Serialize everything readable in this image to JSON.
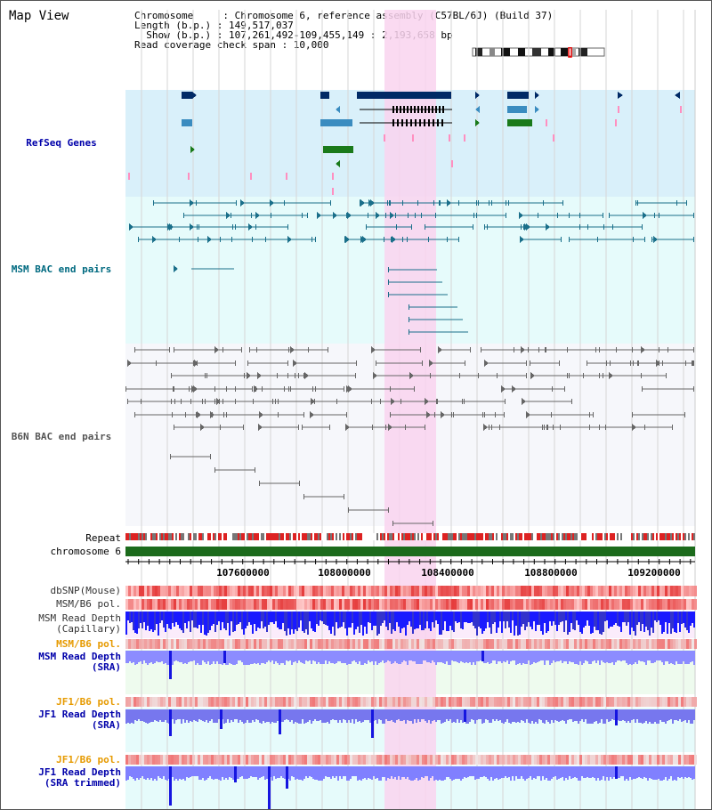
{
  "title": "Map View",
  "info": {
    "chromosome": "Chromosome     : Chromosome 6, reference assembly (C57BL/6J) (Build 37)",
    "length": "Length (b.p.) : 149,517,037",
    "show": "  Show (b.p.) : 107,261,492-109,455,149 : 2,193,658 bp",
    "coverage": "Read coverage check span : 10,000"
  },
  "tracks": {
    "refseq": {
      "label": "RefSeq Genes",
      "color": "#0000aa"
    },
    "msm_bac": {
      "label": "MSM BAC end pairs",
      "color": "#006a80"
    },
    "b6n_bac": {
      "label": "B6N BAC end pairs",
      "color": "#555555"
    },
    "repeat": {
      "label": "Repeat"
    },
    "chromosome": {
      "label": "chromosome 6"
    },
    "dbsnp": {
      "label": "dbSNP(Mouse)"
    },
    "msm_b6_pol_a": {
      "label": "MSM/B6 pol."
    },
    "msm_depth_cap": {
      "label": "MSM Read Depth\n(Capillary)",
      "color": "#333333"
    },
    "msm_b6_pol_b": {
      "label": "MSM/B6 pol.",
      "color": "#e69a00"
    },
    "msm_depth_sra": {
      "label": "MSM Read Depth\n(SRA)",
      "color": "#0000aa"
    },
    "jf1_b6_pol_a": {
      "label": "JF1/B6 pol.",
      "color": "#e69a00"
    },
    "jf1_depth_sra": {
      "label": "JF1 Read Depth\n(SRA)",
      "color": "#0000aa"
    },
    "jf1_b6_pol_b": {
      "label": "JF1/B6 pol.",
      "color": "#e69a00"
    },
    "jf1_depth_trim": {
      "label": "JF1 Read Depth\n(SRA trimmed)",
      "color": "#0000aa"
    }
  },
  "axis": {
    "ticks": [
      "107600000",
      "108000000",
      "108400000",
      "108800000",
      "109200000"
    ]
  },
  "colors": {
    "highlight": "#f9d4ee",
    "refseq_bg": "#d9f0fa",
    "msm_bg": "#e6fbfb",
    "b6n_bg": "#f6f7fb",
    "gene_dark": "#002a66",
    "gene_mid": "#3a8cc0",
    "gene_green": "#1a7a1a",
    "repeat_red": "#dd2222",
    "chrom_green": "#1c6b1c",
    "depth_blue": "#1a1aff",
    "depth_light": "#8c8cff"
  }
}
